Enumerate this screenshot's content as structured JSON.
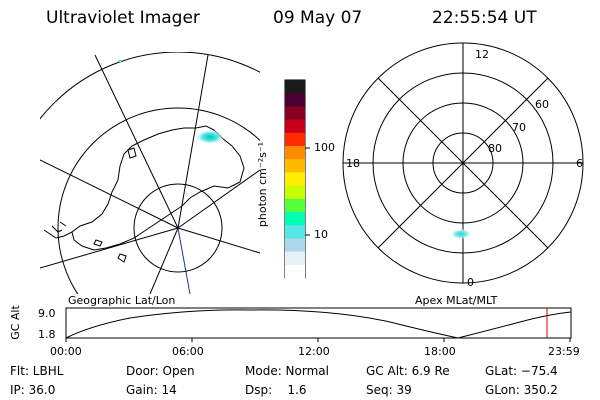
{
  "header": {
    "instrument": "Ultraviolet Imager",
    "date": "09 May 07",
    "time": "22:55:54 UT"
  },
  "geo_panel": {
    "label": "Geographic Lat/Lon"
  },
  "colorbar": {
    "unit_label": "photon cm⁻²s⁻¹",
    "ticks": [
      "100",
      "10"
    ],
    "colors": [
      "#1a1a1a",
      "#4b0033",
      "#8a0020",
      "#c8001a",
      "#ff2a00",
      "#ff8a00",
      "#ffbb00",
      "#ffee00",
      "#c8ff00",
      "#55ff3a",
      "#00ffb0",
      "#55e6e6",
      "#aad8ea",
      "#e6f2f8",
      "#ffffff"
    ]
  },
  "apex_panel": {
    "label": "Apex MLat/MLT",
    "mlt_labels": {
      "top": "12",
      "bottom": "0",
      "left": "18",
      "right": "6"
    },
    "mlat_labels": [
      "60",
      "70",
      "80"
    ]
  },
  "altitude_plot": {
    "ylabel": "GC Alt",
    "y_ticks": [
      "9.0",
      "1.8"
    ],
    "x_ticks": [
      "00:00",
      "06:00",
      "12:00",
      "18:00",
      "23:59"
    ],
    "curve_color": "#000000",
    "marker_color": "#cc0000"
  },
  "info": {
    "flt": "Flt: LBHL",
    "ip": "IP: 36.0",
    "door": "Door: Open",
    "gain": "Gain: 14",
    "mode": "Mode: Normal",
    "dsp": "Dsp:    1.6",
    "gcalt": "GC Alt: 6.9 Re",
    "seq": "Seq: 39",
    "glat": "GLat: −75.4",
    "glon": "GLon: 350.2"
  }
}
